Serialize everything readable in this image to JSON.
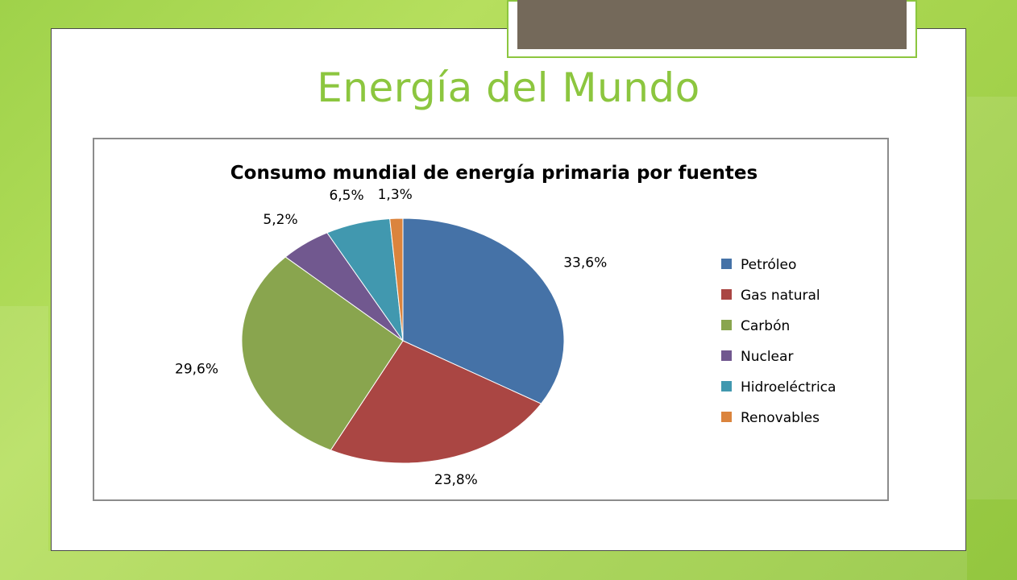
{
  "slide": {
    "title": "Energía del Mundo"
  },
  "chart_data": {
    "type": "pie",
    "title": "Consumo mundial de energía primaria por fuentes",
    "categories": [
      "Petróleo",
      "Gas natural",
      "Carbón",
      "Nuclear",
      "Hidroeléctrica",
      "Renovables"
    ],
    "values": [
      33.6,
      23.8,
      29.6,
      5.2,
      6.5,
      1.3
    ],
    "labels": [
      "33,6%",
      "23,8%",
      "29,6%",
      "5,2%",
      "6,5%",
      "1,3%"
    ],
    "colors": [
      "#4572a7",
      "#aa4643",
      "#89a54e",
      "#71588f",
      "#4198af",
      "#db843d"
    ],
    "legend_position": "right"
  },
  "colors": {
    "title": "#8cc63f",
    "accent_band": "#74695a",
    "background": "#a9d650"
  }
}
